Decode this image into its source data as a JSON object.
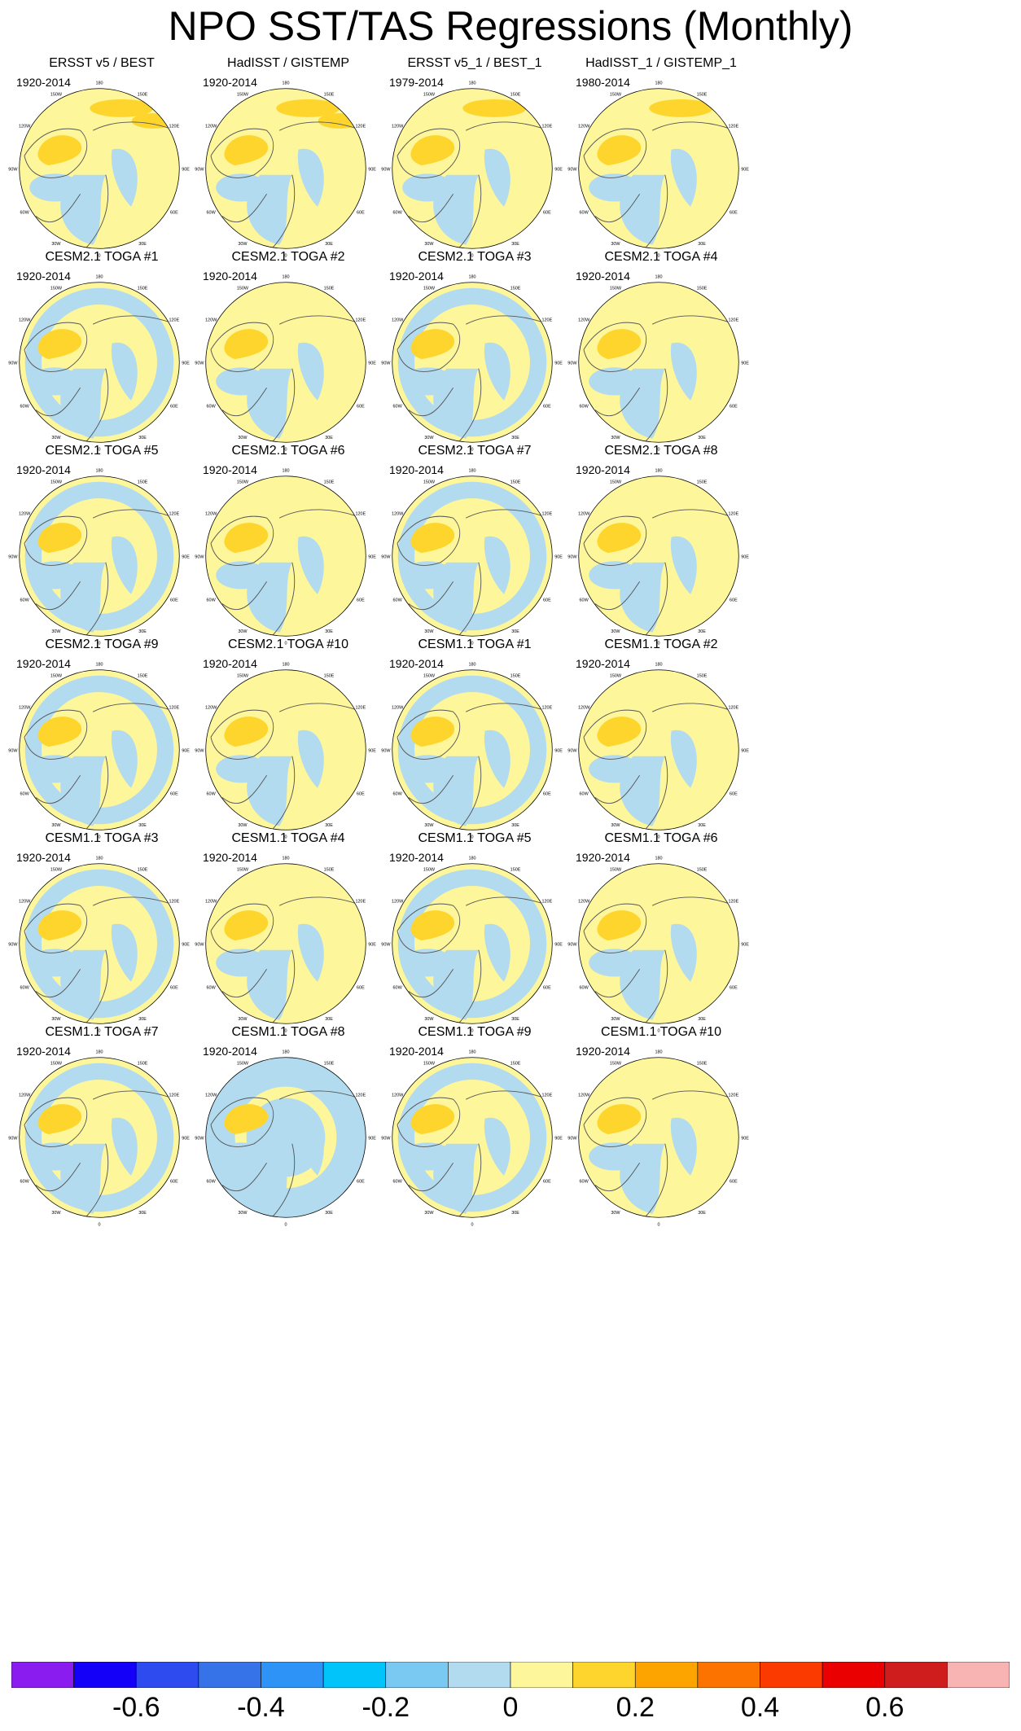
{
  "title": "NPO SST/TAS Regressions (Monthly)",
  "lon_labels": [
    "180",
    "150E",
    "120E",
    "90E",
    "60E",
    "30E",
    "0",
    "30W",
    "60W",
    "90W",
    "120W",
    "150W"
  ],
  "panels": [
    {
      "title": "ERSST v5 / BEST",
      "period": "1920-2014",
      "style": "obs1"
    },
    {
      "title": "HadISST / GISTEMP",
      "period": "1920-2014",
      "style": "obs2"
    },
    {
      "title": "ERSST v5_1 / BEST_1",
      "period": "1979-2014",
      "style": "obs3"
    },
    {
      "title": "HadISST_1 / GISTEMP_1",
      "period": "1980-2014",
      "style": "obs4"
    },
    {
      "title": "CESM2.1 TOGA #1",
      "period": "1920-2014",
      "style": "ring"
    },
    {
      "title": "CESM2.1 TOGA #2",
      "period": "1920-2014",
      "style": "mixed"
    },
    {
      "title": "CESM2.1 TOGA #3",
      "period": "1920-2014",
      "style": "ring"
    },
    {
      "title": "CESM2.1 TOGA #4",
      "period": "1920-2014",
      "style": "mixed"
    },
    {
      "title": "CESM2.1 TOGA #5",
      "period": "1920-2014",
      "style": "ring"
    },
    {
      "title": "CESM2.1 TOGA #6",
      "period": "1920-2014",
      "style": "mixed"
    },
    {
      "title": "CESM2.1 TOGA #7",
      "period": "1920-2014",
      "style": "ring"
    },
    {
      "title": "CESM2.1 TOGA #8",
      "period": "1920-2014",
      "style": "mixed"
    },
    {
      "title": "CESM2.1 TOGA #9",
      "period": "1920-2014",
      "style": "ring"
    },
    {
      "title": "CESM2.1 TOGA #10",
      "period": "1920-2014",
      "style": "mixed"
    },
    {
      "title": "CESM1.1 TOGA #1",
      "period": "1920-2014",
      "style": "ring"
    },
    {
      "title": "CESM1.1 TOGA #2",
      "period": "1920-2014",
      "style": "mixed"
    },
    {
      "title": "CESM1.1 TOGA #3",
      "period": "1920-2014",
      "style": "ring"
    },
    {
      "title": "CESM1.1 TOGA #4",
      "period": "1920-2014",
      "style": "mixed"
    },
    {
      "title": "CESM1.1 TOGA #5",
      "period": "1920-2014",
      "style": "ring"
    },
    {
      "title": "CESM1.1 TOGA #6",
      "period": "1920-2014",
      "style": "mixed"
    },
    {
      "title": "CESM1.1 TOGA #7",
      "period": "1920-2014",
      "style": "ring"
    },
    {
      "title": "CESM1.1 TOGA #8",
      "period": "1920-2014",
      "style": "blue"
    },
    {
      "title": "CESM1.1 TOGA #9",
      "period": "1920-2014",
      "style": "ring"
    },
    {
      "title": "CESM1.1 TOGA #10",
      "period": "1920-2014",
      "style": "mixed"
    }
  ],
  "colorbar": {
    "colors": [
      "#8a1cf0",
      "#1400f8",
      "#2d4bee",
      "#3673e8",
      "#2e93f6",
      "#00c4fa",
      "#79c9f3",
      "#b3dbf0",
      "#fdf69a",
      "#fdd52c",
      "#fda400",
      "#fd7300",
      "#fb3a00",
      "#ea0000",
      "#cf1c1c",
      "#f8b3b3"
    ],
    "labels": [
      "-0.6",
      "-0.4",
      "-0.2",
      "0",
      "0.2",
      "0.4",
      "0.6"
    ],
    "label_values": [
      -0.6,
      -0.4,
      -0.2,
      0,
      0.2,
      0.4,
      0.6
    ],
    "min": -0.8,
    "max": 0.8
  },
  "palette": {
    "yellow": "#fdf69a",
    "light_blue": "#b3dbf0",
    "gold": "#fdd52c",
    "blue": "#79c9f3",
    "coast": "#555555"
  }
}
